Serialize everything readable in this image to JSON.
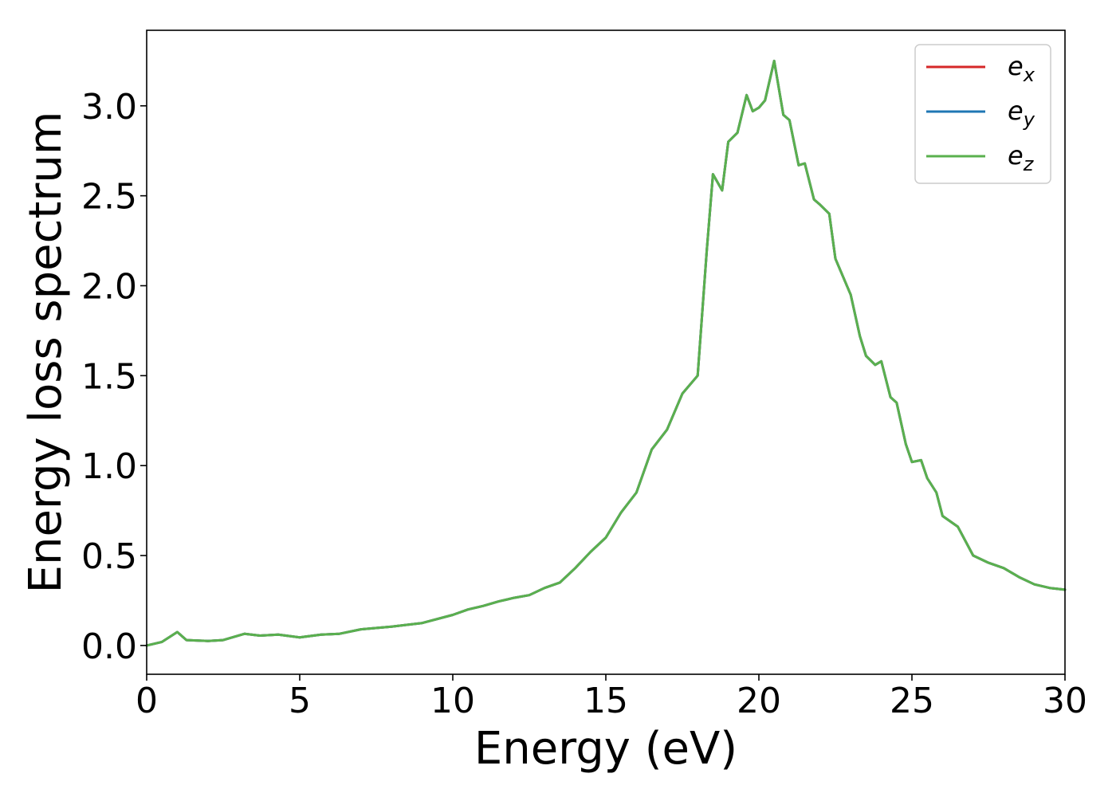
{
  "chart_data": {
    "type": "line",
    "title": "",
    "xlabel": "Energy (eV)",
    "ylabel": "Energy loss spectrum",
    "xlim": [
      0,
      30
    ],
    "ylim": [
      -0.16,
      3.42
    ],
    "xticks": [
      0,
      5,
      10,
      15,
      20,
      25,
      30
    ],
    "xtick_labels": [
      "0",
      "5",
      "10",
      "15",
      "20",
      "25",
      "30"
    ],
    "yticks": [
      0.0,
      0.5,
      1.0,
      1.5,
      2.0,
      2.5,
      3.0
    ],
    "ytick_labels": [
      "0.0",
      "0.5",
      "1.0",
      "1.5",
      "2.0",
      "2.5",
      "3.0"
    ],
    "grid": false,
    "legend_position": "top-right",
    "x": [
      0,
      0.5,
      1.0,
      1.3,
      2.0,
      2.5,
      3.2,
      3.7,
      4.3,
      5.0,
      5.7,
      6.3,
      7.0,
      8.0,
      9.0,
      10.0,
      10.5,
      11.0,
      11.5,
      12.0,
      12.5,
      13.0,
      13.5,
      14.0,
      14.5,
      15.0,
      15.5,
      16.0,
      16.5,
      17.0,
      17.5,
      18.0,
      18.3,
      18.5,
      18.8,
      19.0,
      19.3,
      19.6,
      19.8,
      20.0,
      20.2,
      20.5,
      20.8,
      21.0,
      21.3,
      21.5,
      21.8,
      22.0,
      22.3,
      22.5,
      22.8,
      23.0,
      23.3,
      23.5,
      23.8,
      24.0,
      24.3,
      24.5,
      24.8,
      25.0,
      25.3,
      25.5,
      25.8,
      26.0,
      26.5,
      27.0,
      27.5,
      28.0,
      28.5,
      29.0,
      29.5,
      30.0
    ],
    "series": [
      {
        "name": "e_x",
        "label_base": "e",
        "label_sub": "x",
        "color": "#d62728",
        "values": [
          0.0,
          0.02,
          0.075,
          0.03,
          0.025,
          0.03,
          0.065,
          0.055,
          0.06,
          0.045,
          0.06,
          0.065,
          0.09,
          0.105,
          0.125,
          0.17,
          0.2,
          0.22,
          0.245,
          0.265,
          0.28,
          0.32,
          0.35,
          0.43,
          0.52,
          0.6,
          0.74,
          0.85,
          1.09,
          1.2,
          1.4,
          1.5,
          2.2,
          2.62,
          2.53,
          2.8,
          2.85,
          3.06,
          2.97,
          2.99,
          3.03,
          3.25,
          2.95,
          2.92,
          2.67,
          2.68,
          2.48,
          2.45,
          2.4,
          2.15,
          2.03,
          1.95,
          1.72,
          1.61,
          1.56,
          1.58,
          1.38,
          1.35,
          1.12,
          1.02,
          1.03,
          0.93,
          0.85,
          0.72,
          0.66,
          0.5,
          0.46,
          0.43,
          0.38,
          0.34,
          0.32,
          0.31
        ]
      },
      {
        "name": "e_y",
        "label_base": "e",
        "label_sub": "y",
        "color": "#1f77b4",
        "values": [
          0.0,
          0.02,
          0.075,
          0.03,
          0.025,
          0.03,
          0.065,
          0.055,
          0.06,
          0.045,
          0.06,
          0.065,
          0.09,
          0.105,
          0.125,
          0.17,
          0.2,
          0.22,
          0.245,
          0.265,
          0.28,
          0.32,
          0.35,
          0.43,
          0.52,
          0.6,
          0.74,
          0.85,
          1.09,
          1.2,
          1.4,
          1.5,
          2.2,
          2.62,
          2.53,
          2.8,
          2.85,
          3.06,
          2.97,
          2.99,
          3.03,
          3.25,
          2.95,
          2.92,
          2.67,
          2.68,
          2.48,
          2.45,
          2.4,
          2.15,
          2.03,
          1.95,
          1.72,
          1.61,
          1.56,
          1.58,
          1.38,
          1.35,
          1.12,
          1.02,
          1.03,
          0.93,
          0.85,
          0.72,
          0.66,
          0.5,
          0.46,
          0.43,
          0.38,
          0.34,
          0.32,
          0.31
        ]
      },
      {
        "name": "e_z",
        "label_base": "e",
        "label_sub": "z",
        "color": "#5ab04e",
        "values": [
          0.0,
          0.02,
          0.075,
          0.03,
          0.025,
          0.03,
          0.065,
          0.055,
          0.06,
          0.045,
          0.06,
          0.065,
          0.09,
          0.105,
          0.125,
          0.17,
          0.2,
          0.22,
          0.245,
          0.265,
          0.28,
          0.32,
          0.35,
          0.43,
          0.52,
          0.6,
          0.74,
          0.85,
          1.09,
          1.2,
          1.4,
          1.5,
          2.2,
          2.62,
          2.53,
          2.8,
          2.85,
          3.06,
          2.97,
          2.99,
          3.03,
          3.25,
          2.95,
          2.92,
          2.67,
          2.68,
          2.48,
          2.45,
          2.4,
          2.15,
          2.03,
          1.95,
          1.72,
          1.61,
          1.56,
          1.58,
          1.38,
          1.35,
          1.12,
          1.02,
          1.03,
          0.93,
          0.85,
          0.72,
          0.66,
          0.5,
          0.46,
          0.43,
          0.38,
          0.34,
          0.32,
          0.31
        ]
      }
    ]
  }
}
